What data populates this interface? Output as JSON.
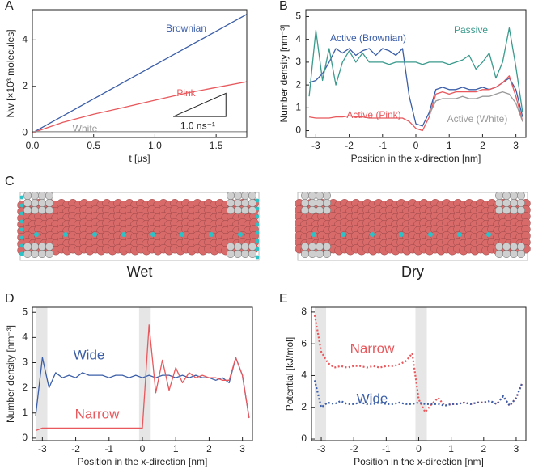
{
  "chart_data": [
    {
      "type": "line",
      "panel": "A",
      "x_label": "t [µs]",
      "y_label": "Nw [×10³ molecules]",
      "annotation": "1.0 ns⁻¹",
      "x": [
        0,
        0.25,
        0.5,
        0.75,
        1,
        1.25,
        1.5,
        1.75
      ],
      "xlim": [
        0,
        1.75
      ],
      "ylim": [
        -0.2,
        5.3
      ],
      "xticks": [
        {
          "value": 0,
          "label": "0.0"
        },
        0.5,
        {
          "value": 1,
          "label": "1.0"
        },
        1.5
      ],
      "yticks": [
        0,
        2,
        4
      ],
      "series": [
        {
          "name": "Brownian",
          "color": "#3b5ea8",
          "values": [
            0,
            0.73,
            1.46,
            2.19,
            2.92,
            3.65,
            4.37,
            5.1
          ]
        },
        {
          "name": "Pink",
          "color": "#e8585c",
          "values": [
            0,
            0.45,
            0.8,
            1.1,
            1.4,
            1.7,
            1.95,
            2.2
          ]
        },
        {
          "name": "White",
          "color": "#999999",
          "values": [
            0.05,
            0.05,
            0.05,
            0.05,
            0.05,
            0.05,
            0.05,
            0.05
          ]
        }
      ]
    },
    {
      "type": "line",
      "panel": "B",
      "x_label": "Position in the x-direction [nm]",
      "y_label": "Number density [nm⁻³]",
      "x": [
        -3.2,
        -3.0,
        -2.8,
        -2.6,
        -2.4,
        -2.2,
        -2.0,
        -1.8,
        -1.6,
        -1.4,
        -1.2,
        -1.0,
        -0.8,
        -0.6,
        -0.4,
        -0.2,
        0,
        0.2,
        0.4,
        0.6,
        0.8,
        1.0,
        1.2,
        1.4,
        1.6,
        1.8,
        2.0,
        2.2,
        2.4,
        2.6,
        2.8,
        3.0,
        3.2
      ],
      "xlim": [
        -3.3,
        3.3
      ],
      "ylim": [
        -0.3,
        5.3
      ],
      "xticks": [
        -3,
        -2,
        -1,
        0,
        1,
        2,
        3
      ],
      "yticks": [
        0,
        1,
        2,
        3,
        4,
        5
      ],
      "series": [
        {
          "name": "Active (Brownian)",
          "color": "#3b5ea8",
          "values": [
            2.1,
            2.2,
            2.5,
            3.0,
            3.6,
            3.4,
            3.6,
            3.3,
            3.5,
            3.6,
            3.3,
            3.6,
            3.5,
            3.3,
            3.6,
            1.5,
            0.3,
            0.2,
            0.8,
            1.8,
            1.9,
            1.8,
            1.8,
            1.9,
            1.8,
            1.8,
            1.9,
            1.8,
            1.9,
            2.1,
            2.3,
            1.8,
            0.6
          ]
        },
        {
          "name": "Passive",
          "color": "#3a9a8c",
          "values": [
            1.5,
            4.4,
            2.2,
            3.6,
            2.0,
            3.0,
            3.5,
            3.0,
            3.4,
            3.0,
            3.0,
            3.0,
            2.9,
            3.0,
            3.0,
            3.0,
            3.0,
            2.9,
            3.0,
            3.0,
            3.0,
            2.9,
            3.0,
            3.1,
            3.3,
            2.7,
            3.0,
            3.4,
            2.3,
            3.0,
            4.5,
            2.8,
            0.8
          ]
        },
        {
          "name": "Active (Pink)",
          "color": "#e8585c",
          "values": [
            0.6,
            0.55,
            0.55,
            0.55,
            0.6,
            0.6,
            0.65,
            0.6,
            0.6,
            0.55,
            0.55,
            0.55,
            0.55,
            0.55,
            0.55,
            0.4,
            0.1,
            0.0,
            0.6,
            1.6,
            1.7,
            1.6,
            1.7,
            1.7,
            1.7,
            1.7,
            1.8,
            1.8,
            1.9,
            2.1,
            2.4,
            1.5,
            0.4
          ]
        },
        {
          "name": "Active (White)",
          "color": "#999999",
          "values": [
            null,
            null,
            null,
            null,
            null,
            null,
            null,
            null,
            null,
            null,
            null,
            null,
            null,
            null,
            null,
            null,
            null,
            null,
            0.7,
            1.3,
            1.4,
            1.4,
            1.4,
            1.5,
            1.4,
            1.4,
            1.5,
            1.5,
            1.6,
            1.7,
            1.6,
            1.2,
            0.4
          ]
        }
      ]
    },
    {
      "type": "illustration",
      "panel": "C",
      "labels": [
        "Wet",
        "Dry"
      ]
    },
    {
      "type": "line",
      "panel": "D",
      "x_label": "Position in the x-direction [nm]",
      "y_label": "Number density [nm⁻³]",
      "shaded_regions": [
        [
          -3.2,
          -2.85
        ],
        [
          -0.1,
          0.25
        ]
      ],
      "x": [
        -3.2,
        -3.0,
        -2.8,
        -2.6,
        -2.4,
        -2.2,
        -2.0,
        -1.8,
        -1.6,
        -1.4,
        -1.2,
        -1.0,
        -0.8,
        -0.6,
        -0.4,
        -0.2,
        0,
        0.2,
        0.4,
        0.6,
        0.8,
        1.0,
        1.2,
        1.4,
        1.6,
        1.8,
        2.0,
        2.2,
        2.4,
        2.6,
        2.8,
        3.0,
        3.2
      ],
      "xlim": [
        -3.3,
        3.3
      ],
      "ylim": [
        -0.1,
        5.2
      ],
      "xticks": [
        -3,
        -2,
        -1,
        0,
        1,
        2,
        3
      ],
      "yticks": [
        0,
        1,
        2,
        3,
        4,
        5
      ],
      "series": [
        {
          "name": "Wide",
          "color": "#3b5ea8",
          "values": [
            0.9,
            3.2,
            2.0,
            2.6,
            2.4,
            2.5,
            2.4,
            2.6,
            2.5,
            2.5,
            2.5,
            2.4,
            2.5,
            2.5,
            2.4,
            2.5,
            2.4,
            2.5,
            2.4,
            2.5,
            2.5,
            2.4,
            2.5,
            2.4,
            2.5,
            2.4,
            2.4,
            2.3,
            2.4,
            2.2,
            3.2,
            2.5,
            0.8
          ]
        },
        {
          "name": "Narrow",
          "color": "#e8585c",
          "values": [
            0.3,
            0.4,
            0.4,
            0.4,
            0.4,
            0.4,
            0.4,
            0.4,
            0.4,
            0.4,
            0.4,
            0.4,
            0.4,
            0.4,
            0.4,
            0.4,
            0.4,
            4.5,
            1.8,
            3.1,
            1.9,
            2.8,
            2.2,
            2.6,
            2.4,
            2.5,
            2.4,
            2.4,
            2.3,
            2.3,
            3.2,
            2.5,
            0.8
          ]
        }
      ]
    },
    {
      "type": "line",
      "panel": "E",
      "x_label": "Position in the x-direction [nm]",
      "y_label": "Potential [kJ/mol]",
      "line_style": "dotted",
      "shaded_regions": [
        [
          -3.2,
          -2.85
        ],
        [
          -0.1,
          0.25
        ]
      ],
      "x": [
        -3.2,
        -3.0,
        -2.8,
        -2.6,
        -2.4,
        -2.2,
        -2.0,
        -1.8,
        -1.6,
        -1.4,
        -1.2,
        -1.0,
        -0.8,
        -0.6,
        -0.4,
        -0.2,
        0,
        0.2,
        0.4,
        0.6,
        0.8,
        1.0,
        1.2,
        1.4,
        1.6,
        1.8,
        2.0,
        2.2,
        2.4,
        2.6,
        2.8,
        3.0,
        3.2
      ],
      "xlim": [
        -3.3,
        3.3
      ],
      "ylim": [
        -0.1,
        8.3
      ],
      "xticks": [
        -3,
        -2,
        -1,
        0,
        1,
        2,
        3
      ],
      "yticks": [
        0,
        2,
        4,
        6,
        8
      ],
      "series": [
        {
          "name": "Narrow",
          "color": "#e8585c",
          "values": [
            7.8,
            5.5,
            4.8,
            4.5,
            4.6,
            4.5,
            4.6,
            4.6,
            4.5,
            4.6,
            4.5,
            4.6,
            4.6,
            4.7,
            4.9,
            5.4,
            2.5,
            1.7,
            2.2,
            2.6,
            2.1,
            2.2,
            2.2,
            2.3,
            2.2,
            2.3,
            2.3,
            2.4,
            2.2,
            2.7,
            2.1,
            2.6,
            3.6
          ]
        },
        {
          "name": "Wide",
          "color": "#3b5ea8",
          "values": [
            3.7,
            2.0,
            2.3,
            2.2,
            2.4,
            2.2,
            2.2,
            2.3,
            2.2,
            2.2,
            2.3,
            2.2,
            2.2,
            2.3,
            2.2,
            2.2,
            2.3,
            2.2,
            2.2,
            2.2,
            2.1,
            2.2,
            2.2,
            2.3,
            2.2,
            2.3,
            2.3,
            2.4,
            2.2,
            2.7,
            2.1,
            2.6,
            3.6
          ]
        }
      ]
    }
  ]
}
